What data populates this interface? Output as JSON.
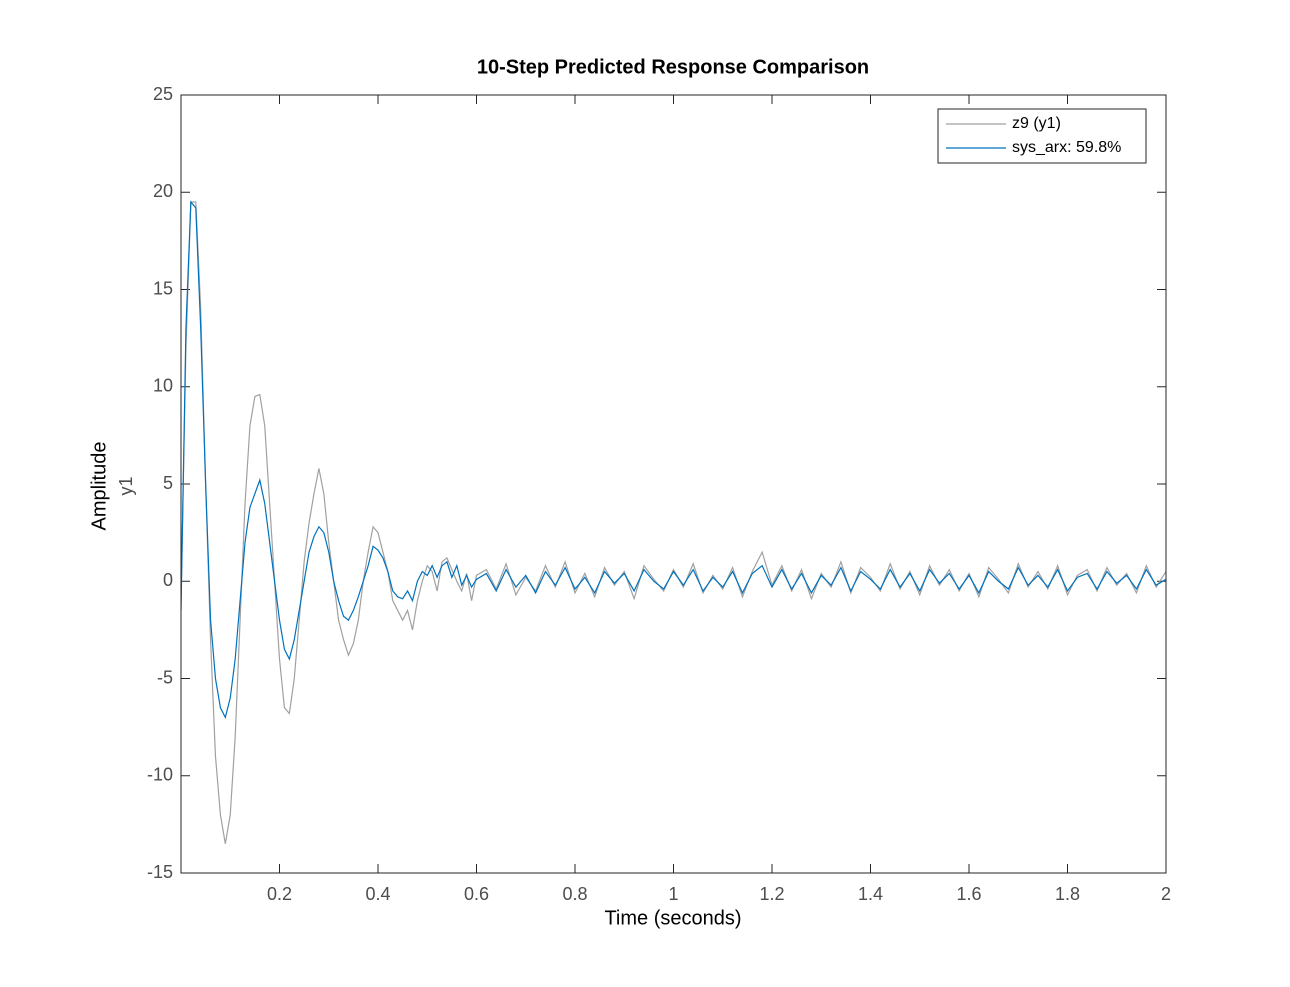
{
  "chart_data": {
    "type": "line",
    "title": "10-Step Predicted Response Comparison",
    "xlabel": "Time (seconds)",
    "ylabel": "Amplitude",
    "output_label": "y1",
    "xlim": [
      0,
      2
    ],
    "xticks": [
      0.2,
      0.4,
      0.6,
      0.8,
      1,
      1.2,
      1.4,
      1.6,
      1.8,
      2
    ],
    "ylim": [
      -15,
      25
    ],
    "yticks": [
      -15,
      -10,
      -5,
      0,
      5,
      10,
      15,
      20,
      25
    ],
    "legend": "top-right",
    "x": [
      0,
      0.01,
      0.02,
      0.03,
      0.04,
      0.05,
      0.06,
      0.07,
      0.08,
      0.09,
      0.1,
      0.11,
      0.12,
      0.13,
      0.14,
      0.15,
      0.16,
      0.17,
      0.18,
      0.19,
      0.2,
      0.21,
      0.22,
      0.23,
      0.24,
      0.25,
      0.26,
      0.27,
      0.28,
      0.29,
      0.3,
      0.31,
      0.32,
      0.33,
      0.34,
      0.35,
      0.36,
      0.37,
      0.38,
      0.39,
      0.4,
      0.41,
      0.42,
      0.43,
      0.44,
      0.45,
      0.46,
      0.47,
      0.48,
      0.49,
      0.5,
      0.51,
      0.52,
      0.53,
      0.54,
      0.55,
      0.56,
      0.57,
      0.58,
      0.59,
      0.6,
      0.62,
      0.64,
      0.66,
      0.68,
      0.7,
      0.72,
      0.74,
      0.76,
      0.78,
      0.8,
      0.82,
      0.84,
      0.86,
      0.88,
      0.9,
      0.92,
      0.94,
      0.96,
      0.98,
      1,
      1.02,
      1.04,
      1.06,
      1.08,
      1.1,
      1.12,
      1.14,
      1.16,
      1.18,
      1.2,
      1.22,
      1.24,
      1.26,
      1.28,
      1.3,
      1.32,
      1.34,
      1.36,
      1.38,
      1.4,
      1.42,
      1.44,
      1.46,
      1.48,
      1.5,
      1.52,
      1.54,
      1.56,
      1.58,
      1.6,
      1.62,
      1.64,
      1.66,
      1.68,
      1.7,
      1.72,
      1.74,
      1.76,
      1.78,
      1.8,
      1.82,
      1.84,
      1.86,
      1.88,
      1.9,
      1.92,
      1.94,
      1.96,
      1.98,
      2
    ],
    "series": [
      {
        "name": "z9 (y1)",
        "color": "#a0a0a0",
        "values": [
          -1,
          12,
          19.5,
          19.5,
          14,
          5,
          -3,
          -9,
          -12,
          -13.5,
          -12,
          -8,
          -2,
          4,
          8,
          9.5,
          9.6,
          8,
          4,
          0,
          -4,
          -6.5,
          -6.8,
          -5,
          -2,
          1,
          3,
          4.5,
          5.8,
          4.5,
          2,
          0,
          -2,
          -3,
          -3.8,
          -3.2,
          -2,
          0,
          1.5,
          2.8,
          2.5,
          1.5,
          0.5,
          -1,
          -1.5,
          -2,
          -1.5,
          -2.5,
          -1,
          0,
          0.8,
          0.5,
          -0.5,
          1,
          1.2,
          0.6,
          0,
          -0.5,
          0.4,
          -1,
          0.3,
          0.6,
          -0.4,
          0.9,
          -0.7,
          0.2,
          -0.5,
          0.8,
          -0.3,
          1,
          -0.6,
          0.4,
          -0.8,
          0.7,
          -0.2,
          0.5,
          -0.9,
          0.8,
          0.1,
          -0.5,
          0.6,
          -0.3,
          0.9,
          -0.6,
          0.3,
          -0.4,
          0.7,
          -0.8,
          0.5,
          1.5,
          -0.2,
          0.8,
          -0.5,
          0.6,
          -0.9,
          0.4,
          -0.3,
          1,
          -0.6,
          0.7,
          0.2,
          -0.5,
          0.9,
          -0.4,
          0.5,
          -0.7,
          0.8,
          -0.2,
          0.6,
          -0.5,
          0.4,
          -0.8,
          0.7,
          0.1,
          -0.6,
          0.9,
          -0.3,
          0.5,
          -0.4,
          0.8,
          -0.7,
          0.3,
          0.6,
          -0.5,
          0.7,
          -0.2,
          0.4,
          -0.6,
          0.8,
          -0.3,
          0.5
        ]
      },
      {
        "name": "sys_arx: 59.8%",
        "color": "#0072bd",
        "values": [
          -1.5,
          13,
          19.5,
          19.2,
          13,
          5,
          -2,
          -5,
          -6.5,
          -7,
          -6,
          -4,
          -1,
          2,
          3.8,
          4.5,
          5.2,
          4,
          2,
          0,
          -2,
          -3.5,
          -4,
          -3,
          -1.5,
          0,
          1.5,
          2.3,
          2.8,
          2.5,
          1.5,
          0,
          -1,
          -1.8,
          -2,
          -1.5,
          -0.8,
          0,
          0.8,
          1.8,
          1.6,
          1.2,
          0.5,
          -0.5,
          -0.8,
          -0.9,
          -0.5,
          -1,
          0,
          0.5,
          0.3,
          0.8,
          0.2,
          0.8,
          1,
          0.2,
          0.8,
          -0.2,
          0.3,
          -0.3,
          0.1,
          0.4,
          -0.5,
          0.6,
          -0.3,
          0.3,
          -0.6,
          0.5,
          -0.2,
          0.7,
          -0.4,
          0.2,
          -0.6,
          0.5,
          -0.1,
          0.4,
          -0.5,
          0.6,
          0,
          -0.4,
          0.5,
          -0.2,
          0.6,
          -0.5,
          0.2,
          -0.3,
          0.5,
          -0.6,
          0.4,
          0.8,
          -0.3,
          0.6,
          -0.4,
          0.4,
          -0.6,
          0.3,
          -0.2,
          0.7,
          -0.5,
          0.5,
          0.1,
          -0.4,
          0.6,
          -0.3,
          0.4,
          -0.5,
          0.6,
          -0.1,
          0.4,
          -0.4,
          0.3,
          -0.6,
          0.5,
          0,
          -0.4,
          0.7,
          -0.2,
          0.3,
          -0.3,
          0.6,
          -0.5,
          0.2,
          0.4,
          -0.4,
          0.5,
          -0.1,
          0.3,
          -0.4,
          0.6,
          -0.2,
          0.1
        ]
      }
    ]
  }
}
